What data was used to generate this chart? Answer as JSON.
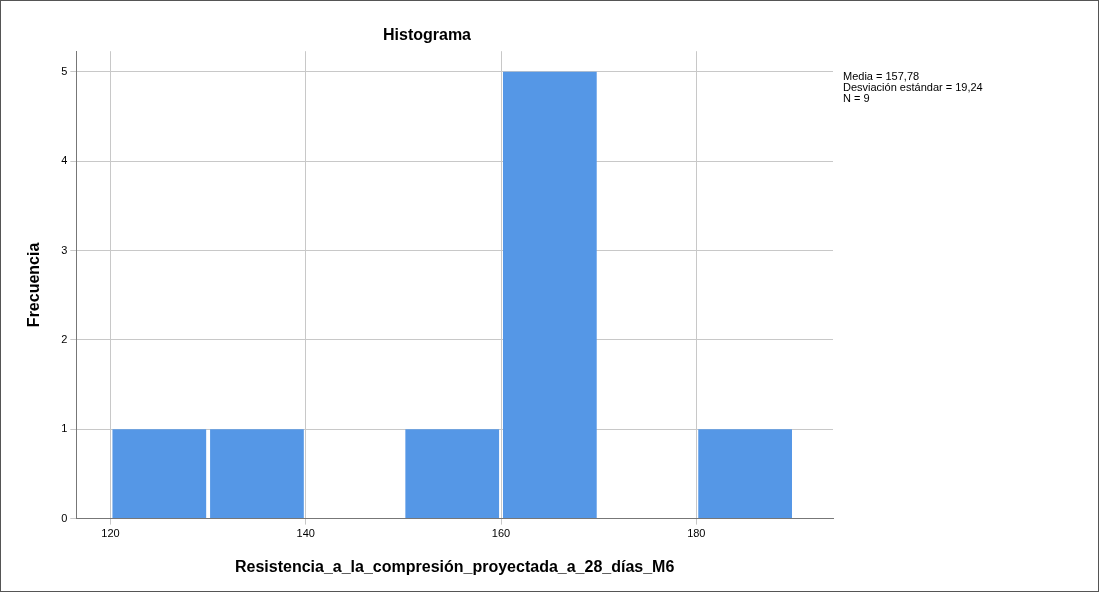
{
  "chart_data": {
    "type": "histogram",
    "title": "Histograma",
    "xlabel": "Resistencia_a_la_compresión_proyectada_a_28_días_M6",
    "ylabel": "Frecuencia",
    "bins": [
      120,
      130,
      140,
      150,
      160,
      170,
      180,
      190
    ],
    "values": [
      1,
      1,
      0,
      1,
      5,
      0,
      1
    ],
    "color": "#5597e6",
    "xlim": [
      116.5,
      194
    ],
    "xticks": [
      120,
      140,
      160,
      180
    ],
    "ylim": [
      0,
      5.23
    ],
    "yticks": [
      0,
      1,
      2,
      3,
      4,
      5
    ],
    "grid": true,
    "legend": false,
    "annotations": [
      "Media = 157,78",
      "Desviación estándar = 19,24",
      "N = 9"
    ]
  }
}
